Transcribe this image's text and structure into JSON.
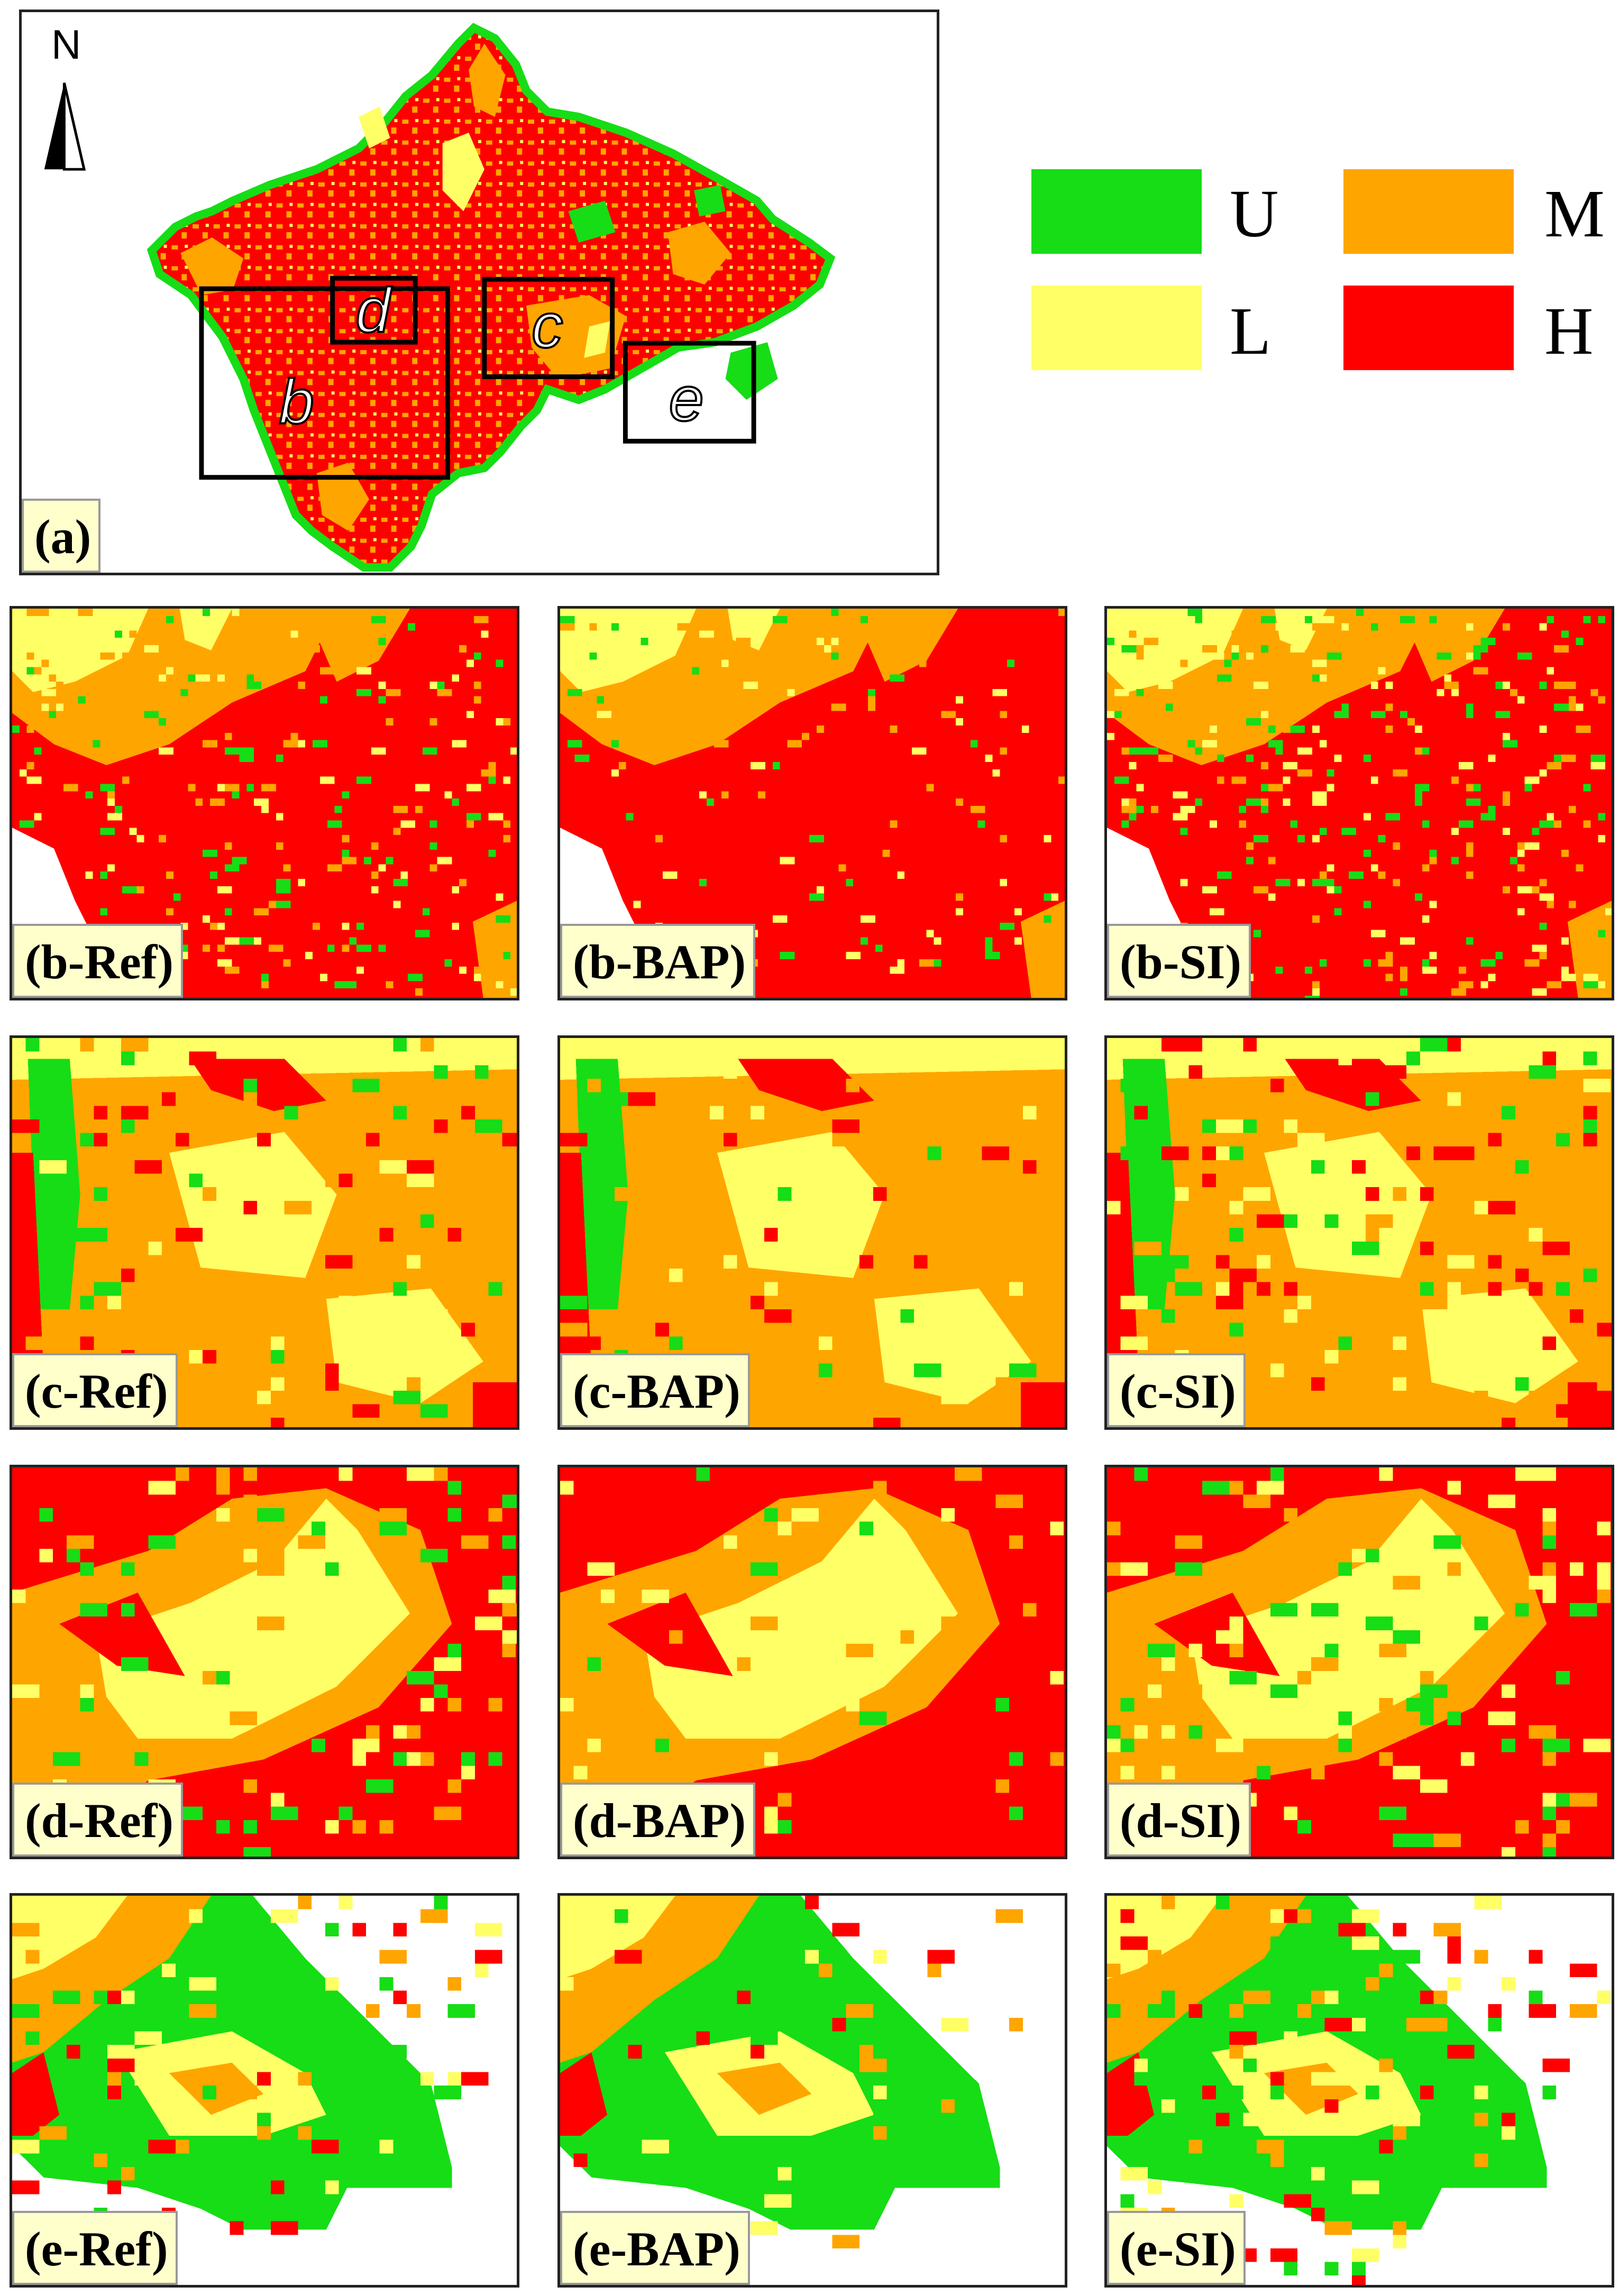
{
  "colors": {
    "U": "#16dd16",
    "L": "#ffff66",
    "M": "#ffa500",
    "H": "#ff0000",
    "background": "#ffffff",
    "frame": "#222222",
    "label_bg": "#ffffcc"
  },
  "overview": {
    "label": "(a)",
    "north_label": "N",
    "north_icon": "north-arrow-icon",
    "insets": [
      {
        "letter": "b"
      },
      {
        "letter": "c"
      },
      {
        "letter": "d"
      },
      {
        "letter": "e"
      }
    ]
  },
  "legend": {
    "items": [
      {
        "key": "U",
        "label": "U"
      },
      {
        "key": "M",
        "label": "M"
      },
      {
        "key": "L",
        "label": "L"
      },
      {
        "key": "H",
        "label": "H"
      }
    ]
  },
  "panels": [
    {
      "label": "(b-Ref)",
      "region": "b",
      "method": "Ref"
    },
    {
      "label": "(b-BAP)",
      "region": "b",
      "method": "BAP"
    },
    {
      "label": "(b-SI)",
      "region": "b",
      "method": "SI"
    },
    {
      "label": "(c-Ref)",
      "region": "c",
      "method": "Ref"
    },
    {
      "label": "(c-BAP)",
      "region": "c",
      "method": "BAP"
    },
    {
      "label": "(c-SI)",
      "region": "c",
      "method": "SI"
    },
    {
      "label": "(d-Ref)",
      "region": "d",
      "method": "Ref"
    },
    {
      "label": "(d-BAP)",
      "region": "d",
      "method": "BAP"
    },
    {
      "label": "(d-SI)",
      "region": "d",
      "method": "SI"
    },
    {
      "label": "(e-Ref)",
      "region": "e",
      "method": "Ref"
    },
    {
      "label": "(e-BAP)",
      "region": "e",
      "method": "BAP"
    },
    {
      "label": "(e-SI)",
      "region": "e",
      "method": "SI"
    }
  ]
}
